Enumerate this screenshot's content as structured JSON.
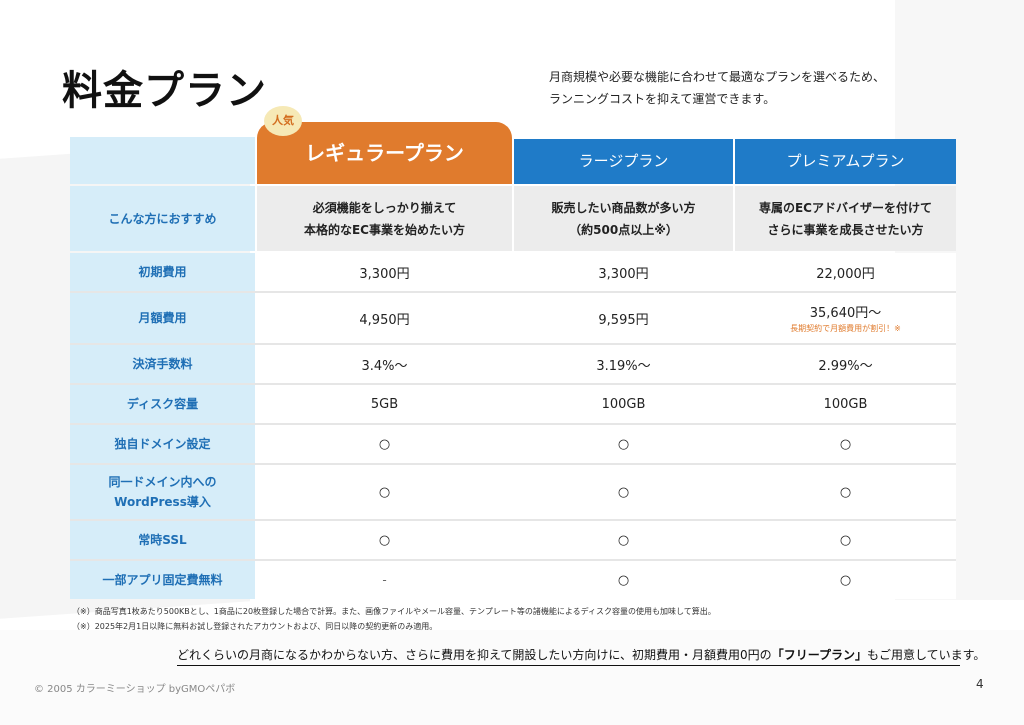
{
  "page": {
    "title": "料金プラン",
    "lead_line1": "月商規模や必要な機能に合わせて最適なプランを選べるため、",
    "lead_line2": "ランニングコストを抑えて運営できます。",
    "popular_badge": "人気",
    "plans": [
      "レギュラープラン",
      "ラージプラン",
      "プレミアムプラン"
    ],
    "rows": [
      {
        "label": [
          "こんな方におすすめ"
        ],
        "values": [
          [
            "必須機能をしっかり揃えて",
            "本格的なEC事業を始めたい方"
          ],
          [
            "販売したい商品数が多い方",
            "（約500点以上※）"
          ],
          [
            "専属のECアドバイザーを付けて",
            "さらに事業を成長させたい方"
          ]
        ]
      },
      {
        "label": [
          "初期費用"
        ],
        "values": [
          "3,300円",
          "3,300円",
          "22,000円"
        ]
      },
      {
        "label": [
          "月額費用"
        ],
        "values": [
          "4,950円",
          "9,595円",
          "35,640円〜"
        ],
        "premium_note": "長期契約で月額費用が割引！※"
      },
      {
        "label": [
          "決済手数料"
        ],
        "values": [
          "3.4%〜",
          "3.19%〜",
          "2.99%〜"
        ]
      },
      {
        "label": [
          "ディスク容量"
        ],
        "values": [
          "5GB",
          "100GB",
          "100GB"
        ]
      },
      {
        "label": [
          "独自ドメイン設定"
        ],
        "values": [
          "○",
          "○",
          "○"
        ]
      },
      {
        "label": [
          "同一ドメイン内への",
          "WordPress導入"
        ],
        "values": [
          "○",
          "○",
          "○"
        ]
      },
      {
        "label": [
          "常時SSL"
        ],
        "values": [
          "○",
          "○",
          "○"
        ]
      },
      {
        "label": [
          "一部アプリ固定費無料"
        ],
        "values": [
          "-",
          "○",
          "○"
        ]
      }
    ],
    "footnote1": "（※）商品写真1枚あたり500KBとし、1商品に20枚登録した場合で計算。また、画像ファイルやメール容量、テンプレート等の諸機能によるディスク容量の使用も加味して算出。",
    "footnote2": "（※）2025年2月1日以降に無料お試し登録されたアカウントおよび、同日以降の契約更新のみ適用。",
    "bottom_pre": "どれくらいの月商になるかわからない方、さらに費用を抑えて開設したい方向けに、初期費用・月額費用0円の",
    "bottom_bold": "「フリープラン」",
    "bottom_post": "もご用意しています。",
    "copyright": "© 2005 カラーミーショップ byGMOペパボ",
    "page_number": "4"
  }
}
